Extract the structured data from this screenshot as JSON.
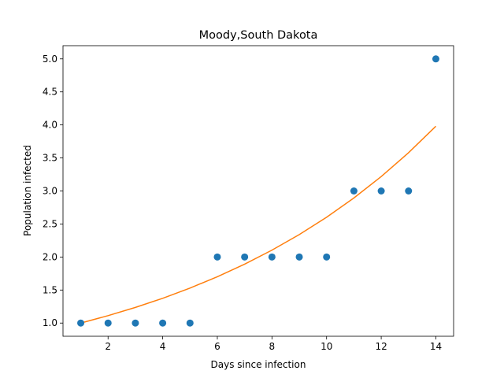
{
  "chart_data": {
    "type": "scatter",
    "title": "Moody,South Dakota",
    "xlabel": "Days since infection",
    "ylabel": "Population infected",
    "xlim": [
      0.35,
      14.65
    ],
    "ylim": [
      0.8,
      5.2
    ],
    "x_ticks": [
      2,
      4,
      6,
      8,
      10,
      12,
      14
    ],
    "x_tick_labels": [
      "2",
      "4",
      "6",
      "8",
      "10",
      "12",
      "14"
    ],
    "y_ticks": [
      1.0,
      1.5,
      2.0,
      2.5,
      3.0,
      3.5,
      4.0,
      4.5,
      5.0
    ],
    "y_tick_labels": [
      "1.0",
      "1.5",
      "2.0",
      "2.5",
      "3.0",
      "3.5",
      "4.0",
      "4.5",
      "5.0"
    ],
    "grid": false,
    "series": [
      {
        "kind": "scatter",
        "color": "#1f77b4",
        "x": [
          1,
          2,
          3,
          4,
          5,
          6,
          7,
          8,
          9,
          10,
          11,
          12,
          13,
          14
        ],
        "y": [
          1,
          1,
          1,
          1,
          1,
          2,
          2,
          2,
          2,
          2,
          3,
          3,
          3,
          5
        ]
      },
      {
        "kind": "line",
        "color": "#ff7f0e",
        "x": [
          1,
          2,
          3,
          4,
          5,
          6,
          7,
          8,
          9,
          10,
          11,
          12,
          13,
          14
        ],
        "y": [
          1.0,
          1.112,
          1.237,
          1.375,
          1.53,
          1.701,
          1.892,
          2.104,
          2.34,
          2.602,
          2.894,
          3.218,
          3.579,
          3.98
        ]
      }
    ]
  }
}
